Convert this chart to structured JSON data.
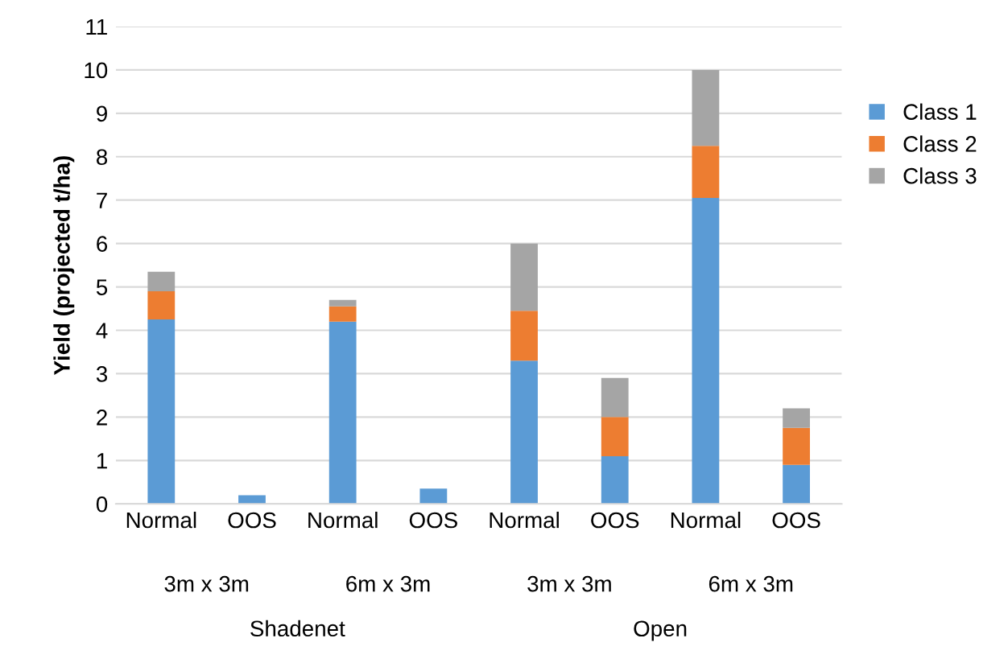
{
  "chart_data": {
    "type": "bar",
    "stacked": true,
    "ylabel": "Yield (projected t/ha)",
    "categories": [
      "Normal",
      "OOS",
      "Normal",
      "OOS",
      "Normal",
      "OOS",
      "Normal",
      "OOS"
    ],
    "series": [
      {
        "name": "Class 1",
        "color": "#5b9bd5",
        "values": [
          4.25,
          0.2,
          4.2,
          0.35,
          3.3,
          1.1,
          7.05,
          0.9
        ]
      },
      {
        "name": "Class 2",
        "color": "#ed7d31",
        "values": [
          0.65,
          null,
          0.35,
          null,
          1.15,
          0.9,
          1.2,
          0.85
        ]
      },
      {
        "name": "Class 3",
        "color": "#a5a5a5",
        "values": [
          0.45,
          null,
          0.15,
          null,
          1.55,
          0.9,
          1.75,
          0.45
        ]
      }
    ],
    "annotations": [
      "3m x 3m",
      "6m x 3m",
      "3m x 3m",
      "6m x 3m",
      "Shadenet",
      "Open"
    ],
    "ylim": [
      0,
      11
    ],
    "yticks": [
      0,
      1,
      2,
      3,
      4,
      5,
      6,
      7,
      8,
      9,
      10,
      11
    ],
    "grid": "y",
    "legend": "right"
  }
}
